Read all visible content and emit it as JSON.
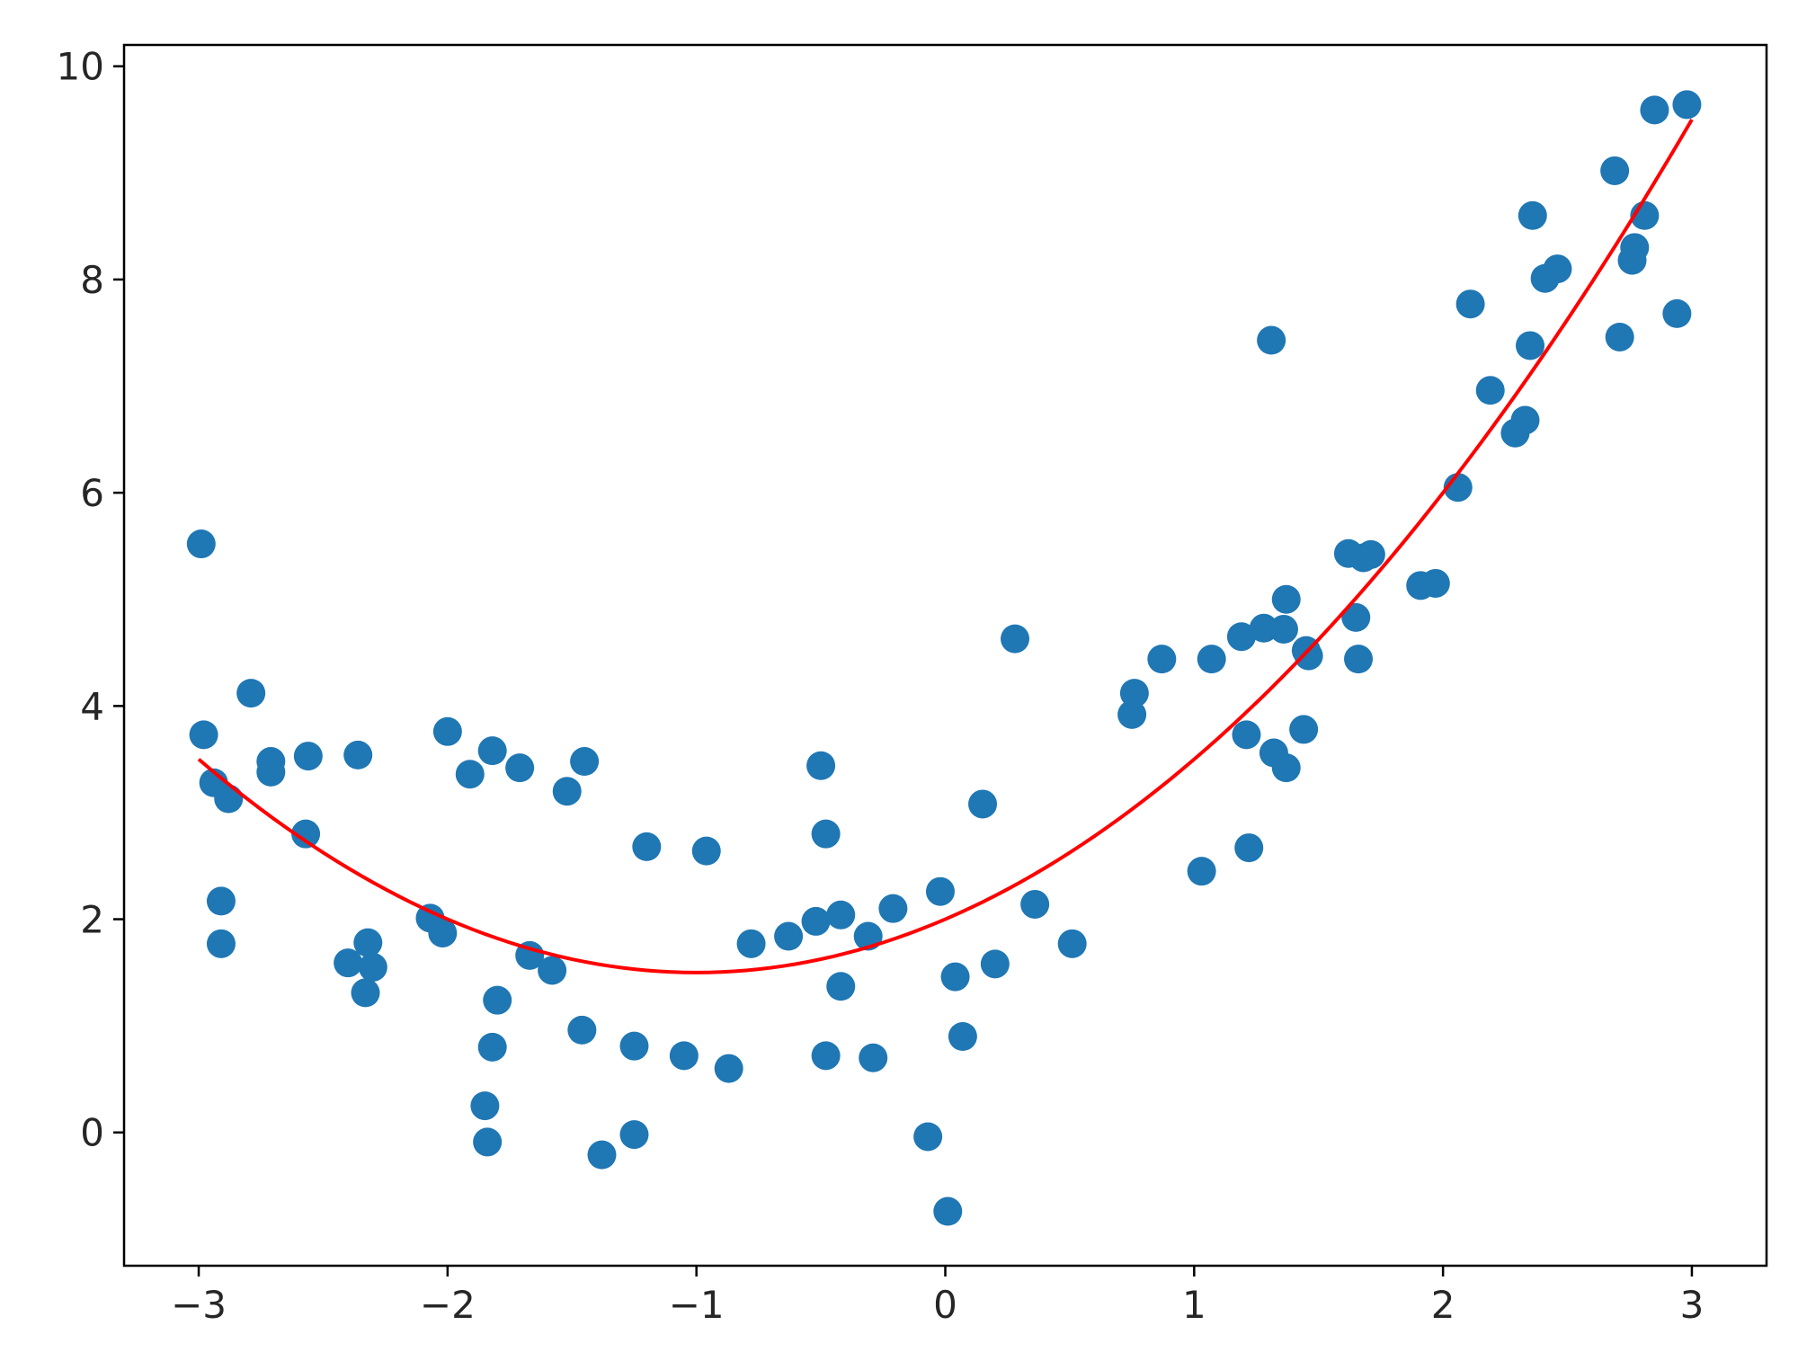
{
  "chart_data": {
    "type": "scatter",
    "title": "",
    "xlabel": "",
    "ylabel": "",
    "xlim": [
      -3.3,
      3.3
    ],
    "ylim": [
      -1.25,
      10.2
    ],
    "grid": false,
    "x_ticks": [
      -3,
      -2,
      -1,
      0,
      1,
      2,
      3
    ],
    "x_tick_labels": [
      "−3",
      "−2",
      "−1",
      "0",
      "1",
      "2",
      "3"
    ],
    "y_ticks": [
      0,
      2,
      4,
      6,
      8,
      10
    ],
    "y_tick_labels": [
      "0",
      "2",
      "4",
      "6",
      "8",
      "10"
    ],
    "colors": {
      "points": "#1f77b4",
      "fit": "#ff0000",
      "axes": "#000000",
      "text": "#262626"
    },
    "series": [
      {
        "type": "scatter",
        "color": "#1f77b4",
        "points": [
          [
            -2.99,
            5.52
          ],
          [
            -2.98,
            3.73
          ],
          [
            -2.94,
            3.28
          ],
          [
            -2.88,
            3.13
          ],
          [
            -2.91,
            2.17
          ],
          [
            -2.91,
            1.77
          ],
          [
            -2.79,
            4.12
          ],
          [
            -2.71,
            3.48
          ],
          [
            -2.71,
            3.38
          ],
          [
            -2.56,
            3.53
          ],
          [
            -2.57,
            2.8
          ],
          [
            -2.36,
            3.54
          ],
          [
            -2.4,
            1.59
          ],
          [
            -2.32,
            1.78
          ],
          [
            -2.3,
            1.55
          ],
          [
            -2.33,
            1.31
          ],
          [
            -2.07,
            2.01
          ],
          [
            -2.02,
            1.87
          ],
          [
            -2.0,
            3.76
          ],
          [
            -1.91,
            3.36
          ],
          [
            -1.82,
            3.58
          ],
          [
            -1.71,
            3.42
          ],
          [
            -1.8,
            1.24
          ],
          [
            -1.82,
            0.8
          ],
          [
            -1.85,
            0.25
          ],
          [
            -1.84,
            -0.09
          ],
          [
            -1.67,
            1.66
          ],
          [
            -1.58,
            1.52
          ],
          [
            -1.52,
            3.2
          ],
          [
            -1.45,
            3.48
          ],
          [
            -1.46,
            0.96
          ],
          [
            -1.38,
            -0.21
          ],
          [
            -1.25,
            0.81
          ],
          [
            -1.25,
            -0.02
          ],
          [
            -1.2,
            2.68
          ],
          [
            -1.05,
            0.72
          ],
          [
            -0.96,
            2.64
          ],
          [
            -0.87,
            0.6
          ],
          [
            -0.78,
            1.77
          ],
          [
            -0.63,
            1.84
          ],
          [
            -0.52,
            1.98
          ],
          [
            -0.5,
            3.44
          ],
          [
            -0.48,
            2.8
          ],
          [
            -0.48,
            0.72
          ],
          [
            -0.42,
            2.04
          ],
          [
            -0.42,
            1.37
          ],
          [
            -0.31,
            1.84
          ],
          [
            -0.29,
            0.7
          ],
          [
            -0.21,
            2.1
          ],
          [
            -0.07,
            -0.04
          ],
          [
            -0.02,
            2.26
          ],
          [
            0.01,
            -0.74
          ],
          [
            0.04,
            1.46
          ],
          [
            0.07,
            0.9
          ],
          [
            0.15,
            3.08
          ],
          [
            0.2,
            1.58
          ],
          [
            0.28,
            4.63
          ],
          [
            0.36,
            2.14
          ],
          [
            0.51,
            1.77
          ],
          [
            0.75,
            3.92
          ],
          [
            0.76,
            4.12
          ],
          [
            0.87,
            4.44
          ],
          [
            1.03,
            2.45
          ],
          [
            1.07,
            4.44
          ],
          [
            1.19,
            4.65
          ],
          [
            1.21,
            3.73
          ],
          [
            1.22,
            2.67
          ],
          [
            1.28,
            4.73
          ],
          [
            1.31,
            7.43
          ],
          [
            1.32,
            3.56
          ],
          [
            1.36,
            4.72
          ],
          [
            1.37,
            5.0
          ],
          [
            1.37,
            3.42
          ],
          [
            1.44,
            3.78
          ],
          [
            1.45,
            4.52
          ],
          [
            1.46,
            4.47
          ],
          [
            1.62,
            5.43
          ],
          [
            1.65,
            4.83
          ],
          [
            1.66,
            4.44
          ],
          [
            1.68,
            5.39
          ],
          [
            1.71,
            5.42
          ],
          [
            1.91,
            5.13
          ],
          [
            1.97,
            5.15
          ],
          [
            2.06,
            6.05
          ],
          [
            2.11,
            7.77
          ],
          [
            2.19,
            6.96
          ],
          [
            2.29,
            6.56
          ],
          [
            2.33,
            6.68
          ],
          [
            2.35,
            7.38
          ],
          [
            2.36,
            8.6
          ],
          [
            2.41,
            8.01
          ],
          [
            2.46,
            8.1
          ],
          [
            2.69,
            9.02
          ],
          [
            2.71,
            7.46
          ],
          [
            2.76,
            8.18
          ],
          [
            2.77,
            8.3
          ],
          [
            2.81,
            8.6
          ],
          [
            2.85,
            9.59
          ],
          [
            2.94,
            7.68
          ],
          [
            2.98,
            9.64
          ]
        ]
      },
      {
        "type": "line",
        "color": "#ff0000",
        "function": "quadratic",
        "coefficients": {
          "a": 0.5,
          "b": 1.0,
          "c": 2.0
        },
        "x_range": [
          -3.0,
          3.0
        ]
      }
    ]
  }
}
